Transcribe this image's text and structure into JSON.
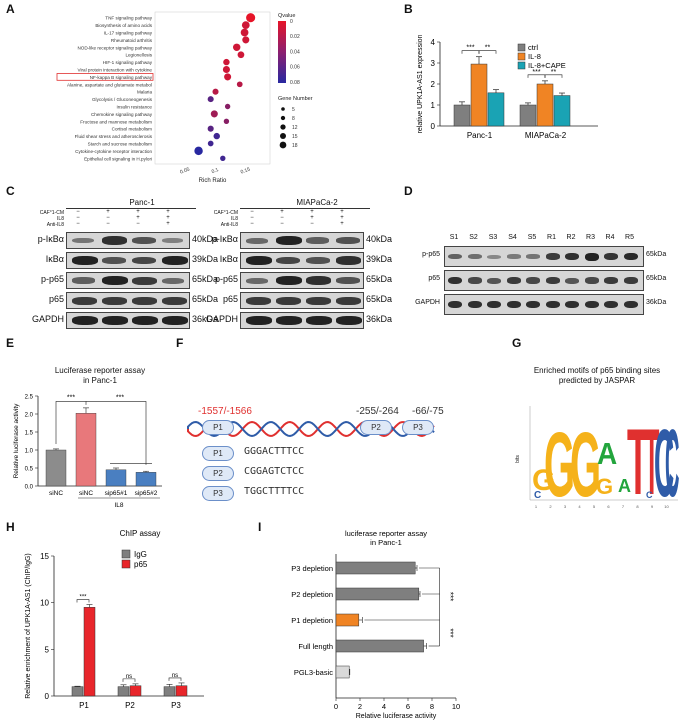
{
  "panels": {
    "A": "A",
    "B": "B",
    "C": "C",
    "D": "D",
    "E": "E",
    "F": "F",
    "G": "G",
    "H": "H",
    "I": "I"
  },
  "panelA": {
    "pathways": [
      "TNF signaling pathway",
      "Biosynthesis of amino acids",
      "IL-17 signaling pathway",
      "Rheumatoid arthritis",
      "NOD-like receptor signaling pathway",
      "Legionellosis",
      "HIF-1 signaling pathway",
      "Viral protein interaction with cytokine",
      "NF-kappa B signaling pathway",
      "Alanine, aspartate and glutamate metabol",
      "Malaria",
      "Glycolysis / Gluconeogenesis",
      "Insulin resistance",
      "Chemokine signaling pathway",
      "Fructose and mannose metabolism",
      "Cortisol metabolism",
      "Fluid shear stress and atherosclerosis",
      "Starch and sucrose metabolism",
      "Cytokine-cytokine receptor interaction",
      "Epithelial cell signaling in H.pylori"
    ],
    "xlabel": "Rich Ratio",
    "xticks": [
      "0.05",
      "0.1",
      "0.15"
    ],
    "qvalue_title": "Qvalue",
    "qvalue_ticks": [
      "0",
      "0.02",
      "0.04",
      "0.06",
      "0.08"
    ],
    "gene_title": "Gene Number",
    "gene_ticks": [
      "5",
      "8",
      "12",
      "15",
      "18"
    ],
    "points": [
      {
        "r": 0.158,
        "q": 0.0,
        "n": 18
      },
      {
        "r": 0.15,
        "q": 0.01,
        "n": 14
      },
      {
        "r": 0.148,
        "q": 0.01,
        "n": 14
      },
      {
        "r": 0.15,
        "q": 0.01,
        "n": 12
      },
      {
        "r": 0.135,
        "q": 0.01,
        "n": 13
      },
      {
        "r": 0.142,
        "q": 0.01,
        "n": 11
      },
      {
        "r": 0.118,
        "q": 0.01,
        "n": 10
      },
      {
        "r": 0.118,
        "q": 0.01,
        "n": 12
      },
      {
        "r": 0.12,
        "q": 0.01,
        "n": 12
      },
      {
        "r": 0.14,
        "q": 0.02,
        "n": 8
      },
      {
        "r": 0.1,
        "q": 0.02,
        "n": 9
      },
      {
        "r": 0.092,
        "q": 0.06,
        "n": 9
      },
      {
        "r": 0.12,
        "q": 0.04,
        "n": 7
      },
      {
        "r": 0.098,
        "q": 0.03,
        "n": 12
      },
      {
        "r": 0.118,
        "q": 0.04,
        "n": 7
      },
      {
        "r": 0.092,
        "q": 0.06,
        "n": 9
      },
      {
        "r": 0.102,
        "q": 0.07,
        "n": 10
      },
      {
        "r": 0.092,
        "q": 0.07,
        "n": 8
      },
      {
        "r": 0.072,
        "q": 0.08,
        "n": 16
      },
      {
        "r": 0.112,
        "q": 0.07,
        "n": 7
      }
    ]
  },
  "panelB": {
    "ylabel": "relative UPK1A-AS1 expression",
    "ylim": [
      0,
      4
    ],
    "yticks": [
      "0",
      "1",
      "2",
      "3",
      "4"
    ],
    "categories": [
      "Panc-1",
      "MIAPaCa-2"
    ],
    "legend": [
      "ctrl",
      "IL-8",
      "IL-8+CAPE"
    ],
    "colors": [
      "#7f7f7f",
      "#f08424",
      "#1aa3b4"
    ],
    "values": [
      [
        1.0,
        2.95,
        1.58
      ],
      [
        1.0,
        2.0,
        1.45
      ]
    ],
    "errors": [
      [
        0.15,
        0.35,
        0.15
      ],
      [
        0.1,
        0.15,
        0.12
      ]
    ],
    "sig": [
      "***",
      "**",
      "***",
      "**"
    ]
  },
  "panelC": {
    "left_title": "Panc-1",
    "right_title": "MIAPaCa-2",
    "conditions": [
      "CAF°1-CM",
      "IL8",
      "Anti-IL8"
    ],
    "signs": [
      [
        "−",
        "+",
        "+",
        "+"
      ],
      [
        "−",
        "−",
        "+",
        "+"
      ],
      [
        "−",
        "−",
        "−",
        "+"
      ]
    ],
    "rows": [
      "p-IκBα",
      "IκBα",
      "p-p65",
      "p65",
      "GAPDH"
    ],
    "sizes": [
      "40kDa",
      "39kDa",
      "65kDa",
      "65kDa",
      "36kDa"
    ]
  },
  "panelD": {
    "lanes": [
      "S1",
      "S2",
      "S3",
      "S4",
      "S5",
      "R1",
      "R2",
      "R3",
      "R4",
      "R5"
    ],
    "rows": [
      "p-p65",
      "p65",
      "GAPDH"
    ],
    "sizes": [
      "65kDa",
      "65kDa",
      "36kDa"
    ]
  },
  "panelE": {
    "title": "Luciferase reporter assay",
    "subtitle": "in Panc-1",
    "ylabel": "Relative luciferase activity",
    "ylim": [
      0,
      2.5
    ],
    "yticks": [
      "0.0",
      "0.5",
      "1.0",
      "1.5",
      "2.0",
      "2.5"
    ],
    "categories": [
      "siNC",
      "siNC",
      "sip65#1",
      "sip65#2"
    ],
    "group_label": "IL8",
    "values": [
      1.0,
      2.02,
      0.45,
      0.38
    ],
    "errors": [
      0.03,
      0.15,
      0.05,
      0.03
    ],
    "colors": [
      "#8c8c8c",
      "#e8787b",
      "#4a7fc1",
      "#4a7fc1"
    ],
    "sig": [
      "***",
      "***"
    ]
  },
  "panelF": {
    "site1": "-1557/-1566",
    "site2": "-255/-264",
    "site3": "-66/-75",
    "labels": [
      "P1",
      "P2",
      "P3"
    ],
    "sequences": [
      "GGGACTTTCC",
      "CGGAGTCTCC",
      "TGGCTTTTCC"
    ]
  },
  "panelG": {
    "title": "Enriched motifs of p65 binding sites",
    "subtitle": "predicted by JASPAR",
    "ylabel": "bits",
    "positions": [
      "1",
      "2",
      "3",
      "4",
      "5",
      "6",
      "7",
      "8",
      "9",
      "10"
    ]
  },
  "panelH": {
    "title": "ChIP assay",
    "ylabel": "Relative enrichment of UPK1A-AS1 (ChIP/IgG)",
    "ylim": [
      0,
      15
    ],
    "yticks": [
      "0",
      "5",
      "10",
      "15"
    ],
    "categories": [
      "P1",
      "P2",
      "P3"
    ],
    "legend": [
      "IgG",
      "p65"
    ],
    "colors": [
      "#7f7f7f",
      "#e8262b"
    ],
    "values": [
      [
        1.0,
        9.5
      ],
      [
        1.0,
        1.1
      ],
      [
        1.0,
        1.1
      ]
    ],
    "errors": [
      [
        0.05,
        0.3
      ],
      [
        0.2,
        0.2
      ],
      [
        0.25,
        0.3
      ]
    ],
    "sig": [
      "***",
      "ns",
      "ns"
    ]
  },
  "panelI": {
    "title": "luciferase reporter assay",
    "subtitle": "in Panc-1",
    "xlabel": "Relative luciferase activity",
    "xlim": [
      0,
      10
    ],
    "xticks": [
      "0",
      "2",
      "4",
      "6",
      "8",
      "10"
    ],
    "categories": [
      "P3 depletion",
      "P2 depletion",
      "P1 depletion",
      "Full length",
      "PGL3-basic"
    ],
    "values": [
      6.6,
      6.9,
      1.9,
      7.3,
      1.1
    ],
    "errors": [
      0.15,
      0.1,
      0.3,
      0.25,
      0.05
    ],
    "colors": [
      "#7f7f7f",
      "#7f7f7f",
      "#f08424",
      "#7f7f7f",
      "#d9d9d9"
    ],
    "sig": [
      "***",
      "***"
    ]
  }
}
